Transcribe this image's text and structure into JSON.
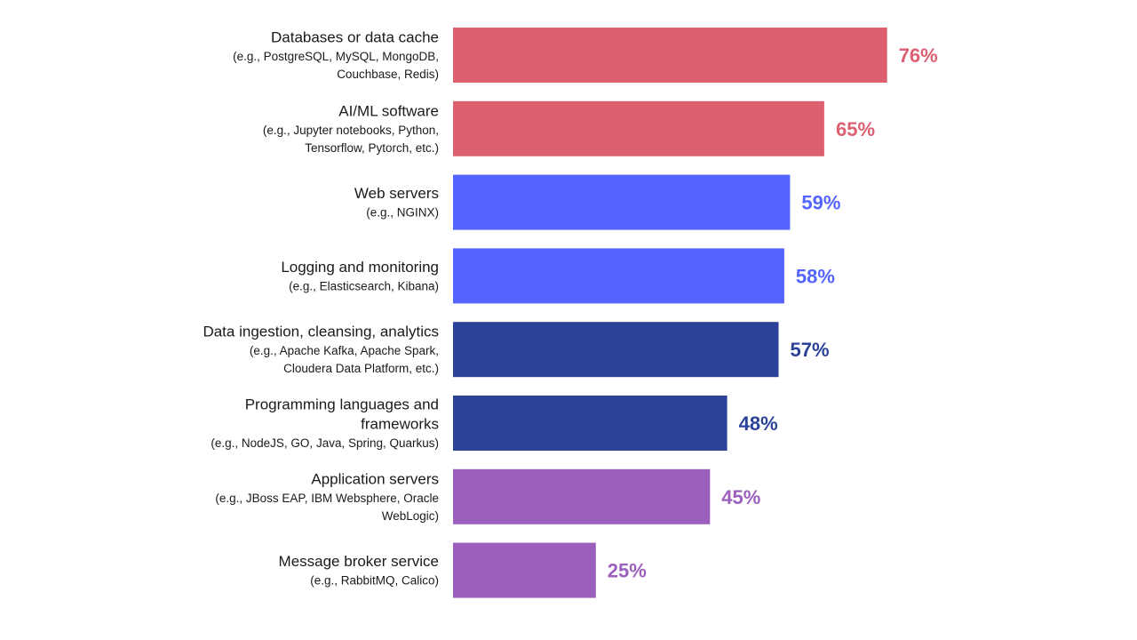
{
  "chart_data": {
    "type": "bar",
    "orientation": "horizontal",
    "grid": false,
    "categories": [
      "Databases or data cache",
      "AI/ML software",
      "Web servers",
      "Logging and monitoring",
      "Data ingestion, cleansing, analytics",
      "Programming languages and frameworks",
      "Application servers",
      "Message broker service"
    ],
    "values": [
      76,
      65,
      59,
      58,
      57,
      48,
      45,
      25
    ],
    "value_labels": [
      "76%",
      "65%",
      "59%",
      "58%",
      "57%",
      "48%",
      "45%",
      "25%"
    ],
    "xlim": [
      0,
      100
    ],
    "rows": [
      {
        "title_lines": [
          "Databases or data cache"
        ],
        "example_lines": [
          "(e.g., PostgreSQL, MySQL, MongoDB,",
          "Couchbase, Redis)"
        ],
        "value": 76,
        "label": "76%",
        "color": "#dc6070"
      },
      {
        "title_lines": [
          "AI/ML software"
        ],
        "example_lines": [
          "(e.g., Jupyter notebooks, Python,",
          "Tensorflow, Pytorch, etc.)"
        ],
        "value": 65,
        "label": "65%",
        "color": "#dc6070"
      },
      {
        "title_lines": [
          "Web servers"
        ],
        "example_lines": [
          "(e.g., NGINX)"
        ],
        "value": 59,
        "label": "59%",
        "color": "#5464fe"
      },
      {
        "title_lines": [
          "Logging and monitoring"
        ],
        "example_lines": [
          "(e.g., Elasticsearch, Kibana)"
        ],
        "value": 58,
        "label": "58%",
        "color": "#5464fe"
      },
      {
        "title_lines": [
          "Data ingestion, cleansing, analytics"
        ],
        "example_lines": [
          "(e.g., Apache Kafka, Apache Spark,",
          "Cloudera Data Platform, etc.)"
        ],
        "value": 57,
        "label": "57%",
        "color": "#2b4298"
      },
      {
        "title_lines": [
          "Programming languages and",
          "frameworks"
        ],
        "example_lines": [
          "(e.g., NodeJS, GO, Java, Spring, Quarkus)"
        ],
        "value": 48,
        "label": "48%",
        "color": "#2b4298"
      },
      {
        "title_lines": [
          "Application servers"
        ],
        "example_lines": [
          "(e.g., JBoss EAP, IBM Websphere, Oracle",
          "WebLogic)"
        ],
        "value": 45,
        "label": "45%",
        "color": "#9b5fbc"
      },
      {
        "title_lines": [
          "Message broker service"
        ],
        "example_lines": [
          "(e.g., RabbitMQ, Calico)"
        ],
        "value": 25,
        "label": "25%",
        "color": "#9b5fbc"
      }
    ]
  }
}
